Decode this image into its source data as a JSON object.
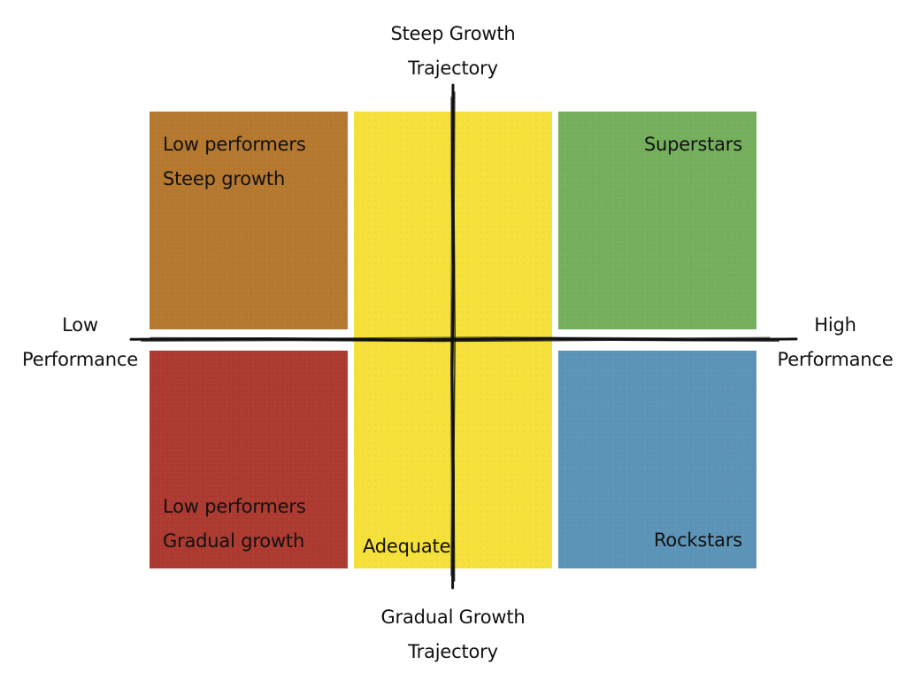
{
  "quadrants": {
    "top_left": {
      "lines": [
        "Low performers",
        "Steep growth"
      ],
      "color": "#b5782e"
    },
    "top_center": {
      "lines": [
        "Adequate"
      ],
      "color": "#f6e03a"
    },
    "top_right": {
      "lines": [
        "Superstars"
      ],
      "color": "#74b05c"
    },
    "bottom_left": {
      "lines": [
        "Low performers",
        "Gradual growth"
      ],
      "color": "#ac3a30"
    },
    "bottom_right": {
      "lines": [
        "Rockstars"
      ],
      "color": "#5b94b7"
    }
  },
  "axes": {
    "top": [
      "Steep Growth",
      "Trajectory"
    ],
    "bottom": [
      "Gradual Growth",
      "Trajectory"
    ],
    "left": [
      "Low",
      "Performance"
    ],
    "right": [
      "High",
      "Performance"
    ],
    "line_color": "#111111"
  }
}
